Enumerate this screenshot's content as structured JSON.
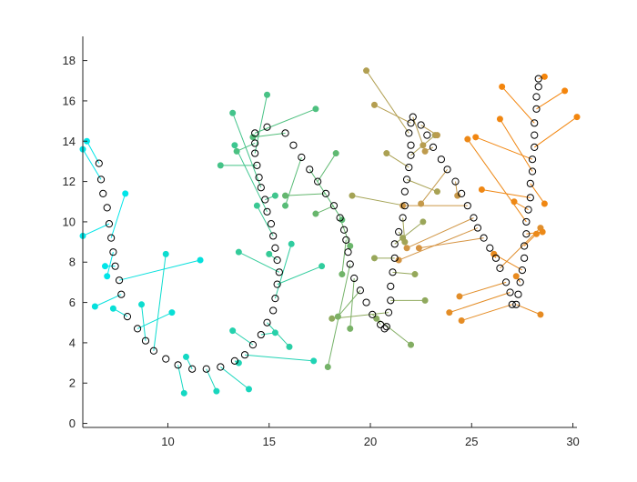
{
  "chart_data": {
    "type": "scatter",
    "title": "",
    "xlabel": "",
    "ylabel": "",
    "xlim": [
      5.8,
      30.2
    ],
    "ylim": [
      -0.2,
      19.2
    ],
    "xticks": [
      10,
      15,
      20,
      25,
      30
    ],
    "yticks": [
      0,
      2,
      4,
      6,
      8,
      10,
      12,
      14,
      16,
      18
    ],
    "grid": false,
    "legend": "none",
    "hollow_marker_color": "#000000",
    "path": [
      [
        6.6,
        12.9
      ],
      [
        6.7,
        12.1
      ],
      [
        6.8,
        11.4
      ],
      [
        7.0,
        10.7
      ],
      [
        7.1,
        9.9
      ],
      [
        7.2,
        9.2
      ],
      [
        7.3,
        8.5
      ],
      [
        7.4,
        7.8
      ],
      [
        7.6,
        7.1
      ],
      [
        7.7,
        6.4
      ],
      [
        8.0,
        5.3
      ],
      [
        8.5,
        4.7
      ],
      [
        8.9,
        4.1
      ],
      [
        9.3,
        3.6
      ],
      [
        9.9,
        3.2
      ],
      [
        10.5,
        2.9
      ],
      [
        11.2,
        2.7
      ],
      [
        11.9,
        2.7
      ],
      [
        12.6,
        2.8
      ],
      [
        13.3,
        3.1
      ],
      [
        13.8,
        3.4
      ],
      [
        14.2,
        3.9
      ],
      [
        14.6,
        4.4
      ],
      [
        14.9,
        5.0
      ],
      [
        15.2,
        5.6
      ],
      [
        15.3,
        6.2
      ],
      [
        15.4,
        6.9
      ],
      [
        15.5,
        7.5
      ],
      [
        15.4,
        8.1
      ],
      [
        15.3,
        8.7
      ],
      [
        15.2,
        9.3
      ],
      [
        15.1,
        9.9
      ],
      [
        14.9,
        10.5
      ],
      [
        14.8,
        11.1
      ],
      [
        14.6,
        11.7
      ],
      [
        14.5,
        12.2
      ],
      [
        14.4,
        12.8
      ],
      [
        14.3,
        13.4
      ],
      [
        14.3,
        13.9
      ],
      [
        14.3,
        14.4
      ],
      [
        14.9,
        14.7
      ],
      [
        15.8,
        14.4
      ],
      [
        16.2,
        13.8
      ],
      [
        16.6,
        13.2
      ],
      [
        17.0,
        12.6
      ],
      [
        17.4,
        12.0
      ],
      [
        17.8,
        11.4
      ],
      [
        18.2,
        10.8
      ],
      [
        18.5,
        10.2
      ],
      [
        18.7,
        9.6
      ],
      [
        18.8,
        9.1
      ],
      [
        18.9,
        8.5
      ],
      [
        19.0,
        7.9
      ],
      [
        19.2,
        7.2
      ],
      [
        19.5,
        6.6
      ],
      [
        19.8,
        6.0
      ],
      [
        20.1,
        5.4
      ],
      [
        20.5,
        4.9
      ],
      [
        20.7,
        4.7
      ],
      [
        20.8,
        4.8
      ],
      [
        20.9,
        5.5
      ],
      [
        21.0,
        6.1
      ],
      [
        21.0,
        6.8
      ],
      [
        21.1,
        7.5
      ],
      [
        21.2,
        8.2
      ],
      [
        21.2,
        8.9
      ],
      [
        21.4,
        9.5
      ],
      [
        21.6,
        10.2
      ],
      [
        21.7,
        10.8
      ],
      [
        21.7,
        11.5
      ],
      [
        21.8,
        12.1
      ],
      [
        21.9,
        12.7
      ],
      [
        22.0,
        13.3
      ],
      [
        22.0,
        13.8
      ],
      [
        21.9,
        14.4
      ],
      [
        22.0,
        14.9
      ],
      [
        22.1,
        15.2
      ],
      [
        22.5,
        14.8
      ],
      [
        22.8,
        14.3
      ],
      [
        23.1,
        13.7
      ],
      [
        23.5,
        13.1
      ],
      [
        23.8,
        12.6
      ],
      [
        24.2,
        12.0
      ],
      [
        24.5,
        11.4
      ],
      [
        24.8,
        10.8
      ],
      [
        25.1,
        10.2
      ],
      [
        25.3,
        9.7
      ],
      [
        25.6,
        9.2
      ],
      [
        25.9,
        8.7
      ],
      [
        26.2,
        8.2
      ],
      [
        26.4,
        7.7
      ],
      [
        26.7,
        7.0
      ],
      [
        26.9,
        6.5
      ],
      [
        27.0,
        5.9
      ],
      [
        27.2,
        5.9
      ],
      [
        27.3,
        6.4
      ],
      [
        27.4,
        7.0
      ],
      [
        27.5,
        7.6
      ],
      [
        27.6,
        8.2
      ],
      [
        27.6,
        8.8
      ],
      [
        27.7,
        9.4
      ],
      [
        27.7,
        10.0
      ],
      [
        27.8,
        10.6
      ],
      [
        27.9,
        11.2
      ],
      [
        27.9,
        11.9
      ],
      [
        28.0,
        12.5
      ],
      [
        28.0,
        13.1
      ],
      [
        28.1,
        13.7
      ],
      [
        28.1,
        14.3
      ],
      [
        28.1,
        14.9
      ],
      [
        28.2,
        15.6
      ],
      [
        28.2,
        16.2
      ],
      [
        28.3,
        16.7
      ],
      [
        28.3,
        17.1
      ]
    ],
    "connections": [
      {
        "from": [
          6.6,
          12.9
        ],
        "to": [
          6.0,
          14.0
        ],
        "color": "#00e5e8"
      },
      {
        "from": [
          6.7,
          12.1
        ],
        "to": [
          5.8,
          13.6
        ],
        "color": "#00e5e8"
      },
      {
        "from": [
          7.1,
          9.9
        ],
        "to": [
          5.8,
          9.3
        ],
        "color": "#00e5e8"
      },
      {
        "from": [
          7.2,
          9.2
        ],
        "to": [
          7.9,
          11.4
        ],
        "color": "#00e5e8"
      },
      {
        "from": [
          7.3,
          8.5
        ],
        "to": [
          7.0,
          7.3
        ],
        "color": "#00e5e8"
      },
      {
        "from": [
          7.4,
          7.8
        ],
        "to": [
          6.9,
          7.8
        ],
        "color": "#00e5e8"
      },
      {
        "from": [
          7.7,
          6.4
        ],
        "to": [
          6.4,
          5.8
        ],
        "color": "#05e0dd"
      },
      {
        "from": [
          7.6,
          7.1
        ],
        "to": [
          11.6,
          8.1
        ],
        "color": "#05e0dd"
      },
      {
        "from": [
          8.0,
          5.3
        ],
        "to": [
          7.3,
          5.7
        ],
        "color": "#08dfd6"
      },
      {
        "from": [
          8.5,
          4.7
        ],
        "to": [
          10.2,
          5.5
        ],
        "color": "#08dfd6"
      },
      {
        "from": [
          8.9,
          4.1
        ],
        "to": [
          8.7,
          5.9
        ],
        "color": "#0cdccf"
      },
      {
        "from": [
          9.3,
          3.6
        ],
        "to": [
          9.9,
          8.4
        ],
        "color": "#0cdccf"
      },
      {
        "from": [
          10.5,
          2.9
        ],
        "to": [
          10.8,
          1.5
        ],
        "color": "#14d8c3"
      },
      {
        "from": [
          11.2,
          2.7
        ],
        "to": [
          10.9,
          3.3
        ],
        "color": "#14d8c3"
      },
      {
        "from": [
          11.9,
          2.7
        ],
        "to": [
          12.4,
          1.6
        ],
        "color": "#19d6bd"
      },
      {
        "from": [
          12.6,
          2.8
        ],
        "to": [
          14.0,
          1.7
        ],
        "color": "#19d6bd"
      },
      {
        "from": [
          13.3,
          3.1
        ],
        "to": [
          13.5,
          3.0
        ],
        "color": "#1fd4b5"
      },
      {
        "from": [
          13.8,
          3.4
        ],
        "to": [
          17.2,
          3.1
        ],
        "color": "#20d3b4"
      },
      {
        "from": [
          14.2,
          3.9
        ],
        "to": [
          13.2,
          4.6
        ],
        "color": "#24d1ad"
      },
      {
        "from": [
          14.6,
          4.4
        ],
        "to": [
          15.3,
          4.5
        ],
        "color": "#27d0a9"
      },
      {
        "from": [
          14.9,
          5.0
        ],
        "to": [
          16.0,
          3.8
        ],
        "color": "#2acea5"
      },
      {
        "from": [
          15.3,
          6.2
        ],
        "to": [
          16.1,
          8.9
        ],
        "color": "#2fcc9f"
      },
      {
        "from": [
          15.4,
          6.9
        ],
        "to": [
          17.6,
          7.8
        ],
        "color": "#31cc9d"
      },
      {
        "from": [
          15.5,
          7.5
        ],
        "to": [
          13.5,
          8.5
        ],
        "color": "#33cb9a"
      },
      {
        "from": [
          15.4,
          8.1
        ],
        "to": [
          15.0,
          8.4
        ],
        "color": "#36ca97"
      },
      {
        "from": [
          15.2,
          9.3
        ],
        "to": [
          14.4,
          10.8
        ],
        "color": "#3ac893"
      },
      {
        "from": [
          14.9,
          10.5
        ],
        "to": [
          13.3,
          13.8
        ],
        "color": "#3dc690"
      },
      {
        "from": [
          14.8,
          11.1
        ],
        "to": [
          15.3,
          11.3
        ],
        "color": "#40c58d"
      },
      {
        "from": [
          14.6,
          11.7
        ],
        "to": [
          13.2,
          15.4
        ],
        "color": "#43c48b"
      },
      {
        "from": [
          14.4,
          12.8
        ],
        "to": [
          12.6,
          12.8
        ],
        "color": "#45c388"
      },
      {
        "from": [
          14.3,
          13.4
        ],
        "to": [
          14.9,
          16.3
        ],
        "color": "#48c285"
      },
      {
        "from": [
          14.3,
          13.9
        ],
        "to": [
          13.4,
          13.5
        ],
        "color": "#4bc182"
      },
      {
        "from": [
          14.3,
          14.4
        ],
        "to": [
          17.3,
          15.6
        ],
        "color": "#4ec07f"
      },
      {
        "from": [
          15.8,
          14.4
        ],
        "to": [
          14.2,
          14.2
        ],
        "color": "#53be7b"
      },
      {
        "from": [
          16.6,
          13.2
        ],
        "to": [
          15.8,
          10.8
        ],
        "color": "#58bc77"
      },
      {
        "from": [
          17.0,
          12.6
        ],
        "to": [
          18.6,
          10.1
        ],
        "color": "#5cba74"
      },
      {
        "from": [
          17.4,
          12.0
        ],
        "to": [
          18.3,
          13.4
        ],
        "color": "#60b972"
      },
      {
        "from": [
          17.8,
          11.4
        ],
        "to": [
          15.8,
          11.3
        ],
        "color": "#64b76f"
      },
      {
        "from": [
          18.2,
          10.8
        ],
        "to": [
          17.3,
          10.4
        ],
        "color": "#68b66d"
      },
      {
        "from": [
          18.5,
          10.2
        ],
        "to": [
          19.0,
          8.8
        ],
        "color": "#6bb56b"
      },
      {
        "from": [
          18.8,
          9.1
        ],
        "to": [
          18.6,
          7.4
        ],
        "color": "#70b469"
      },
      {
        "from": [
          19.0,
          7.9
        ],
        "to": [
          17.9,
          2.8
        ],
        "color": "#74b268"
      },
      {
        "from": [
          19.2,
          7.2
        ],
        "to": [
          19.0,
          4.7
        ],
        "color": "#78b166"
      },
      {
        "from": [
          19.5,
          6.6
        ],
        "to": [
          18.4,
          5.3
        ],
        "color": "#7cb065"
      },
      {
        "from": [
          20.1,
          5.4
        ],
        "to": [
          22.0,
          3.9
        ],
        "color": "#83ad62"
      },
      {
        "from": [
          20.5,
          4.9
        ],
        "to": [
          20.3,
          5.2
        ],
        "color": "#88ac60"
      },
      {
        "from": [
          20.9,
          5.5
        ],
        "to": [
          18.1,
          5.2
        ],
        "color": "#8daa5e"
      },
      {
        "from": [
          21.0,
          6.1
        ],
        "to": [
          22.7,
          6.1
        ],
        "color": "#90a95d"
      },
      {
        "from": [
          21.1,
          7.5
        ],
        "to": [
          22.2,
          7.4
        ],
        "color": "#95a85b"
      },
      {
        "from": [
          21.2,
          8.2
        ],
        "to": [
          20.2,
          8.2
        ],
        "color": "#98a75a"
      },
      {
        "from": [
          21.2,
          8.9
        ],
        "to": [
          22.6,
          10.0
        ],
        "color": "#9ba659"
      },
      {
        "from": [
          21.4,
          9.5
        ],
        "to": [
          21.6,
          9.2
        ],
        "color": "#9ea558"
      },
      {
        "from": [
          21.6,
          10.2
        ],
        "to": [
          21.7,
          9.0
        ],
        "color": "#a1a456"
      },
      {
        "from": [
          21.7,
          10.8
        ],
        "to": [
          19.1,
          11.3
        ],
        "color": "#a4a355"
      },
      {
        "from": [
          21.8,
          12.1
        ],
        "to": [
          23.3,
          11.5
        ],
        "color": "#a8a254"
      },
      {
        "from": [
          21.9,
          12.7
        ],
        "to": [
          20.8,
          13.4
        ],
        "color": "#aba153"
      },
      {
        "from": [
          22.0,
          13.3
        ],
        "to": [
          23.2,
          14.3
        ],
        "color": "#ada052"
      },
      {
        "from": [
          21.9,
          14.4
        ],
        "to": [
          19.8,
          17.5
        ],
        "color": "#b19f51"
      },
      {
        "from": [
          22.0,
          14.9
        ],
        "to": [
          20.2,
          15.8
        ],
        "color": "#b49e50"
      },
      {
        "from": [
          22.1,
          15.2
        ],
        "to": [
          22.6,
          13.8
        ],
        "color": "#b79d4f"
      },
      {
        "from": [
          22.5,
          14.8
        ],
        "to": [
          23.3,
          14.3
        ],
        "color": "#ba9c4e"
      },
      {
        "from": [
          23.1,
          13.7
        ],
        "to": [
          22.7,
          13.5
        ],
        "color": "#be9b4d"
      },
      {
        "from": [
          23.8,
          12.6
        ],
        "to": [
          22.5,
          10.9
        ],
        "color": "#c4994a"
      },
      {
        "from": [
          24.2,
          12.0
        ],
        "to": [
          24.3,
          11.3
        ],
        "color": "#c79849"
      },
      {
        "from": [
          24.8,
          10.8
        ],
        "to": [
          21.6,
          10.8
        ],
        "color": "#cc9646"
      },
      {
        "from": [
          25.1,
          10.2
        ],
        "to": [
          21.8,
          8.7
        ],
        "color": "#d09544"
      },
      {
        "from": [
          25.3,
          9.7
        ],
        "to": [
          21.4,
          8.1
        ],
        "color": "#d39443"
      },
      {
        "from": [
          25.6,
          9.2
        ],
        "to": [
          22.4,
          8.7
        ],
        "color": "#d69341"
      },
      {
        "from": [
          26.2,
          8.2
        ],
        "to": [
          26.1,
          8.4
        ],
        "color": "#dd9033"
      },
      {
        "from": [
          26.4,
          7.7
        ],
        "to": [
          28.4,
          9.7
        ],
        "color": "#e08f2e"
      },
      {
        "from": [
          26.7,
          7.0
        ],
        "to": [
          24.4,
          6.3
        ],
        "color": "#e28e2a"
      },
      {
        "from": [
          26.9,
          6.5
        ],
        "to": [
          23.9,
          5.5
        ],
        "color": "#e48d26"
      },
      {
        "from": [
          27.0,
          5.9
        ],
        "to": [
          24.5,
          5.1
        ],
        "color": "#e58c24"
      },
      {
        "from": [
          27.2,
          5.9
        ],
        "to": [
          28.4,
          5.4
        ],
        "color": "#e68b22"
      },
      {
        "from": [
          27.4,
          7.0
        ],
        "to": [
          27.2,
          7.3
        ],
        "color": "#e88a1f"
      },
      {
        "from": [
          27.5,
          7.6
        ],
        "to": [
          26.1,
          8.4
        ],
        "color": "#e98a1d"
      },
      {
        "from": [
          27.6,
          8.8
        ],
        "to": [
          28.2,
          9.4
        ],
        "color": "#eb891a"
      },
      {
        "from": [
          27.7,
          9.4
        ],
        "to": [
          28.5,
          9.5
        ],
        "color": "#ec8918"
      },
      {
        "from": [
          27.7,
          10.0
        ],
        "to": [
          24.8,
          14.1
        ],
        "color": "#ed8816"
      },
      {
        "from": [
          27.8,
          10.6
        ],
        "to": [
          27.1,
          11.0
        ],
        "color": "#ee8815"
      },
      {
        "from": [
          27.9,
          11.2
        ],
        "to": [
          25.5,
          11.6
        ],
        "color": "#ef8714"
      },
      {
        "from": [
          27.9,
          11.9
        ],
        "to": [
          28.6,
          10.9
        ],
        "color": "#f08712"
      },
      {
        "from": [
          28.0,
          12.5
        ],
        "to": [
          26.4,
          15.1
        ],
        "color": "#f08611"
      },
      {
        "from": [
          28.0,
          13.1
        ],
        "to": [
          25.2,
          14.2
        ],
        "color": "#f18610"
      },
      {
        "from": [
          28.1,
          13.7
        ],
        "to": [
          30.2,
          15.2
        ],
        "color": "#f2860f"
      },
      {
        "from": [
          28.1,
          14.9
        ],
        "to": [
          26.5,
          16.7
        ],
        "color": "#f3850d"
      },
      {
        "from": [
          28.2,
          15.6
        ],
        "to": [
          29.6,
          16.5
        ],
        "color": "#f4850c"
      },
      {
        "from": [
          28.3,
          17.1
        ],
        "to": [
          28.6,
          17.2
        ],
        "color": "#f5850b"
      }
    ]
  }
}
